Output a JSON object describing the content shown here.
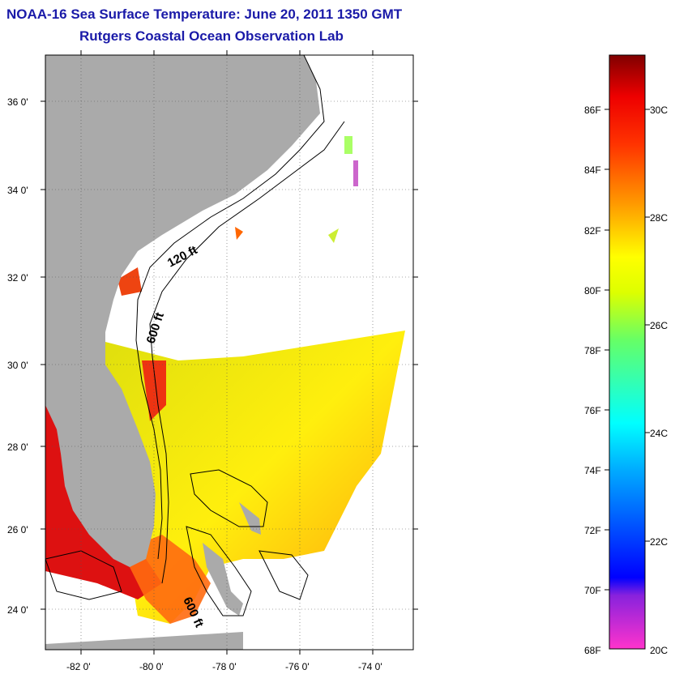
{
  "header": {
    "title": "NOAA-16 Sea Surface Temperature:  June 20, 2011 1350 GMT",
    "subtitle": "Rutgers Coastal Ocean Observation Lab"
  },
  "map": {
    "lat_labels": [
      "36 0'",
      "34 0'",
      "32 0'",
      "30 0'",
      "28 0'",
      "26 0'",
      "24 0'"
    ],
    "lon_labels": [
      "-82 0'",
      "-80 0'",
      "-78 0'",
      "-76 0'",
      "-74 0'"
    ],
    "contour_labels": [
      "120 ft",
      "600 ft",
      "600 ft"
    ],
    "colors": {
      "land": "#aaaaaa",
      "no_data": "#ffffff"
    }
  },
  "colorbar": {
    "fahrenheit_labels": [
      "86F",
      "84F",
      "82F",
      "80F",
      "78F",
      "76F",
      "74F",
      "72F",
      "70F",
      "68F"
    ],
    "celsius_labels": [
      "30C",
      "28C",
      "26C",
      "24C",
      "22C",
      "20C"
    ],
    "gradient_stops": [
      "#ff33cc",
      "#8822dd",
      "#0000ff",
      "#00aaff",
      "#00ffff",
      "#66ff66",
      "#ddff00",
      "#ffff00",
      "#ff9900",
      "#ff3300",
      "#ee0000",
      "#800000"
    ]
  }
}
